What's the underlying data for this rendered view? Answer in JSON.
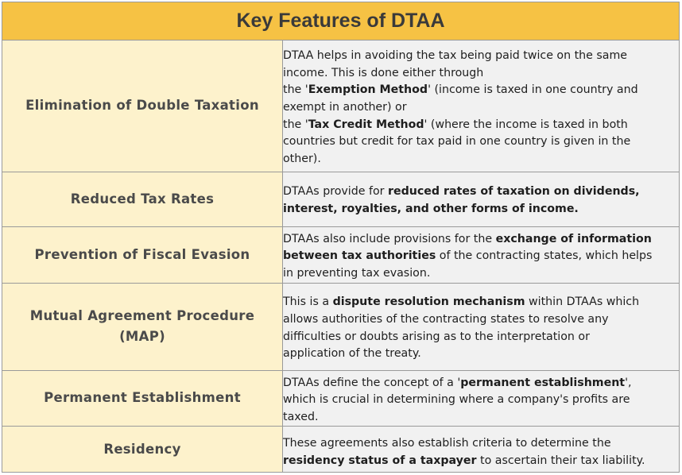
{
  "title": "Key Features of DTAA",
  "rows": [
    {
      "feature": "Elimination of Double Taxation",
      "lines": [
        "DTAA helps in avoiding the tax being paid twice on the same",
        "income. This is done either through",
        "the '",
        "Exemption Method",
        "' (income is taxed in one country and",
        "exempt in another) or",
        "the '",
        "Tax Credit Method",
        "' (where the income is taxed in both",
        "countries but credit for tax paid in one country is given in the",
        "other)."
      ]
    },
    {
      "feature": "Reduced Tax Rates",
      "lines": [
        "DTAAs provide for ",
        "reduced rates of taxation on dividends,",
        "interest, royalties, and other forms of income."
      ]
    },
    {
      "feature": "Prevention of Fiscal Evasion",
      "lines": [
        "DTAAs also include provisions for the ",
        "exchange of information",
        "between tax authorities",
        " of the contracting states, which helps",
        "in preventing tax evasion."
      ]
    },
    {
      "feature_line1": "Mutual Agreement Procedure",
      "feature_line2": "(MAP)",
      "lines": [
        "This is a ",
        "dispute resolution mechanism",
        " within DTAAs which",
        "allows authorities of the contracting states to resolve any",
        "difficulties or doubts arising as to the interpretation or",
        "application of the treaty."
      ]
    },
    {
      "feature": "Permanent Establishment",
      "lines": [
        "DTAAs define the concept of a '",
        "permanent establishment",
        "',",
        "which is crucial in determining where a company's profits are",
        "taxed."
      ]
    },
    {
      "feature": "Residency",
      "lines": [
        "These agreements also establish criteria to determine the",
        "residency status of a taxpayer",
        " to ascertain their tax liability."
      ]
    }
  ]
}
